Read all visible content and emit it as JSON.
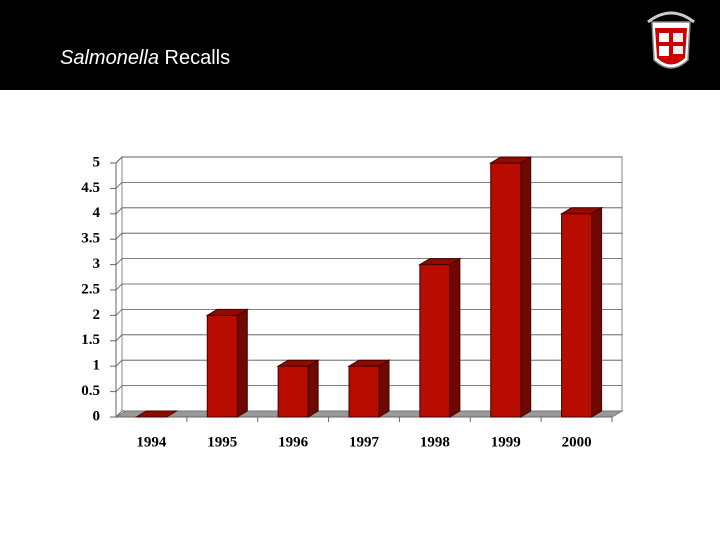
{
  "header": {
    "title_parts": [
      "Salmonella",
      "Recalls"
    ]
  },
  "chart_data": {
    "type": "bar3d",
    "categories": [
      "1994",
      "1995",
      "1996",
      "1997",
      "1998",
      "1999",
      "2000"
    ],
    "values": [
      0,
      2,
      1,
      1,
      3,
      5,
      4
    ],
    "color": "#b80c00",
    "ylim": [
      0,
      5
    ],
    "yticks": [
      0,
      0.5,
      1,
      1.5,
      2,
      2.5,
      3,
      3.5,
      4,
      4.5,
      5
    ],
    "grid": true
  }
}
